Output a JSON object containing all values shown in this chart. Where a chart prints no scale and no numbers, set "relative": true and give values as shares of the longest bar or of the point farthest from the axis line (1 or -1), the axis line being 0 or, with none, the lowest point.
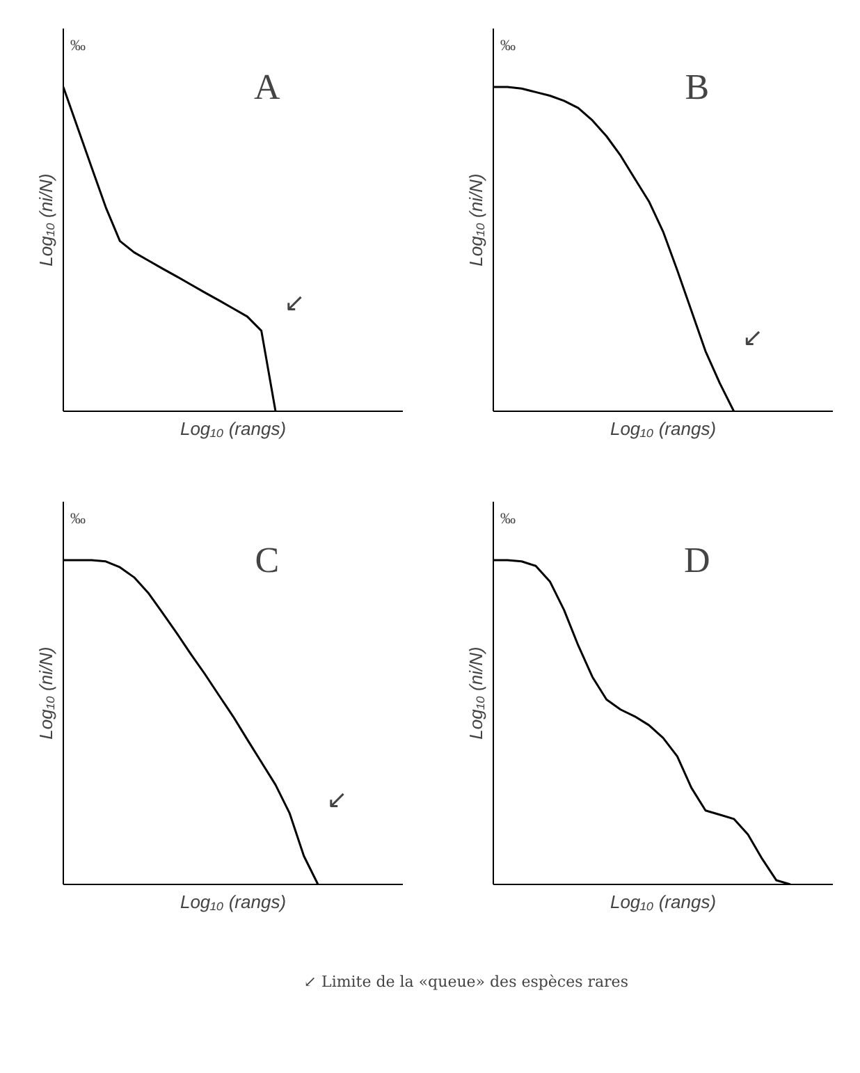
{
  "chart_data": [
    {
      "type": "line",
      "title": "A",
      "relative": true,
      "ylabel": "Log₁₀ (ni/N)",
      "xlabel": "Log₁₀ (rangs)",
      "color": "#000000",
      "categories": [
        null,
        null,
        null,
        null,
        null,
        null,
        null,
        null,
        null,
        null,
        null,
        null,
        null,
        null,
        null,
        null,
        null,
        null,
        null,
        null,
        null,
        null,
        null,
        null,
        null
      ],
      "values": [
        1.0,
        0.876,
        0.752,
        0.629,
        0.525,
        0.49,
        0.465,
        0.44,
        0.416,
        0.391,
        0.366,
        0.342,
        0.317,
        0.292,
        0.248,
        0.0,
        null,
        null,
        null,
        null,
        null,
        null,
        null,
        null,
        null
      ],
      "annotations": [
        "‰",
        "↙"
      ]
    },
    {
      "type": "line",
      "title": "B",
      "relative": true,
      "ylabel": "Log₁₀ (ni/N)",
      "xlabel": "Log₁₀ (rangs)",
      "color": "#000000",
      "categories": [
        null,
        null,
        null,
        null,
        null,
        null,
        null,
        null,
        null,
        null,
        null,
        null,
        null,
        null,
        null,
        null,
        null,
        null,
        null,
        null,
        null,
        null,
        null,
        null,
        null
      ],
      "values": [
        1.0,
        1.0,
        0.995,
        0.984,
        0.973,
        0.957,
        0.935,
        0.897,
        0.848,
        0.788,
        0.717,
        0.647,
        0.554,
        0.435,
        0.31,
        0.185,
        0.087,
        0.0,
        null,
        null,
        null,
        null,
        null,
        null,
        null
      ],
      "annotations": [
        "‰",
        "↙"
      ]
    },
    {
      "type": "line",
      "title": "C",
      "relative": true,
      "ylabel": "Log₁₀ (ni/N)",
      "xlabel": "Log₁₀ (rangs)",
      "color": "#000000",
      "categories": [
        null,
        null,
        null,
        null,
        null,
        null,
        null,
        null,
        null,
        null,
        null,
        null,
        null,
        null,
        null,
        null,
        null,
        null,
        null,
        null,
        null,
        null,
        null,
        null,
        null
      ],
      "values": [
        1.0,
        1.0,
        1.0,
        0.996,
        0.978,
        0.947,
        0.899,
        0.838,
        0.776,
        0.711,
        0.649,
        0.583,
        0.518,
        0.447,
        0.377,
        0.307,
        0.219,
        0.088,
        0.0,
        null,
        null,
        null,
        null,
        null,
        null
      ],
      "annotations": [
        "‰",
        "↙"
      ]
    },
    {
      "type": "line",
      "title": "D",
      "relative": true,
      "ylabel": "Log₁₀ (ni/N)",
      "xlabel": "Log₁₀ (rangs)",
      "color": "#000000",
      "categories": [
        null,
        null,
        null,
        null,
        null,
        null,
        null,
        null,
        null,
        null,
        null,
        null,
        null,
        null,
        null,
        null,
        null,
        null,
        null,
        null,
        null,
        null,
        null,
        null,
        null
      ],
      "values": [
        1.0,
        1.0,
        0.996,
        0.982,
        0.934,
        0.846,
        0.737,
        0.64,
        0.57,
        0.539,
        0.518,
        0.491,
        0.452,
        0.395,
        0.298,
        0.228,
        0.215,
        0.202,
        0.154,
        0.079,
        0.013,
        0.0,
        null,
        null,
        null
      ],
      "annotations": [
        "‰",
        "↙   Limite de la «queue» des espèces rares"
      ]
    }
  ]
}
